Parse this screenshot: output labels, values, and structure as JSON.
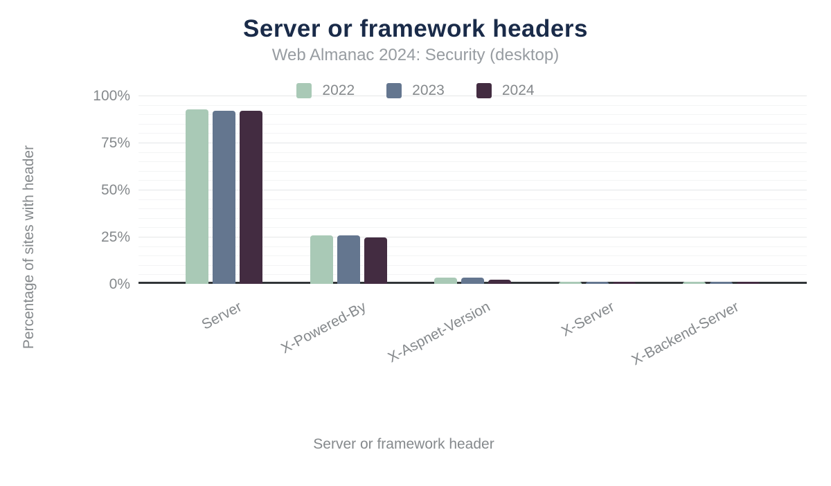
{
  "title": "Server or framework headers",
  "subtitle": "Web Almanac 2024: Security (desktop)",
  "chart_data": {
    "type": "bar",
    "title": "Server or framework headers",
    "subtitle": "Web Almanac 2024: Security (desktop)",
    "xlabel": "Server or framework header",
    "ylabel": "Percentage of sites with header",
    "categories": [
      "Server",
      "X-Powered-By",
      "X-Aspnet-Version",
      "X-Server",
      "X-Backend-Server"
    ],
    "series": [
      {
        "name": "2022",
        "color": "#a9c9b6",
        "values": [
          92,
          25,
          2.5,
          0.5,
          0.4
        ]
      },
      {
        "name": "2023",
        "color": "#64768f",
        "values": [
          91,
          25,
          2.4,
          0.5,
          0.4
        ]
      },
      {
        "name": "2024",
        "color": "#432c41",
        "values": [
          91,
          24,
          1.6,
          0.4,
          0.3
        ]
      }
    ],
    "ylim": [
      0,
      100
    ],
    "y_ticks": [
      "0%",
      "25%",
      "50%",
      "75%",
      "100%"
    ],
    "grid": {
      "major_every": 25,
      "minor_every": 5,
      "visible": true
    },
    "legend_position": "top-center",
    "bar_corner_radius": 4
  },
  "colors": {
    "background": "#ffffff",
    "title_text": "#1a2b49",
    "subtitle_text": "#979ca1",
    "axis_text": "#85898c",
    "axis_line": "#313538",
    "major_grid": "#e4e6e7",
    "minor_grid": "#f3f4f5"
  }
}
